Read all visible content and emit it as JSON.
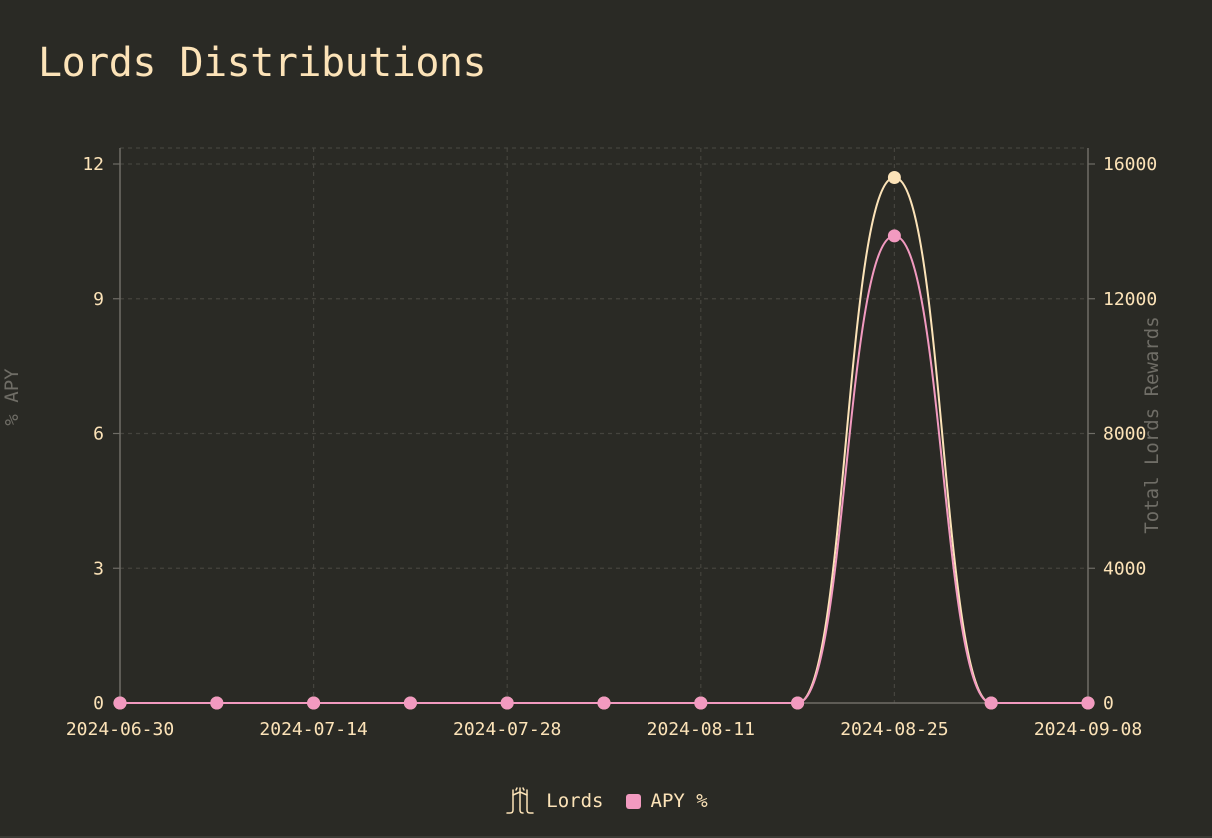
{
  "page": {
    "title": "Lords Distributions"
  },
  "colors": {
    "background": "#2a2a25",
    "lords": "#fce3b8",
    "apy": "#f29ac0",
    "axis": "#6f6d66",
    "grid": "#45443e"
  },
  "chart_data": {
    "type": "line",
    "title": "Lords Distributions",
    "x": [
      "2024-06-30",
      "2024-07-07",
      "2024-07-14",
      "2024-07-21",
      "2024-07-28",
      "2024-08-04",
      "2024-08-11",
      "2024-08-18",
      "2024-08-25",
      "2024-09-01",
      "2024-09-08"
    ],
    "x_tick_labels": [
      "2024-06-30",
      "2024-07-14",
      "2024-07-28",
      "2024-08-11",
      "2024-08-25",
      "2024-09-08"
    ],
    "y_left": {
      "label": "% APY",
      "ticks": [
        "0",
        "3",
        "6",
        "9",
        "12"
      ],
      "ylim": [
        0,
        12
      ]
    },
    "y_right": {
      "label": "Total Lords Rewards",
      "ticks": [
        "0",
        "4000",
        "8000",
        "12000",
        "16000"
      ],
      "ylim": [
        0,
        16000
      ]
    },
    "series": [
      {
        "name": "Lords",
        "axis": "right",
        "icon": "lords-logo-icon",
        "color": "#fce3b8",
        "values": [
          0,
          0,
          0,
          0,
          0,
          0,
          0,
          0,
          15600,
          0,
          0
        ]
      },
      {
        "name": "APY %",
        "axis": "left",
        "icon": "square-swatch",
        "color": "#f29ac0",
        "values": [
          0,
          0,
          0,
          0,
          0,
          0,
          0,
          0,
          10.4,
          0,
          0
        ]
      }
    ],
    "grid": true,
    "legend_position": "bottom-center",
    "curve": "smooth"
  }
}
